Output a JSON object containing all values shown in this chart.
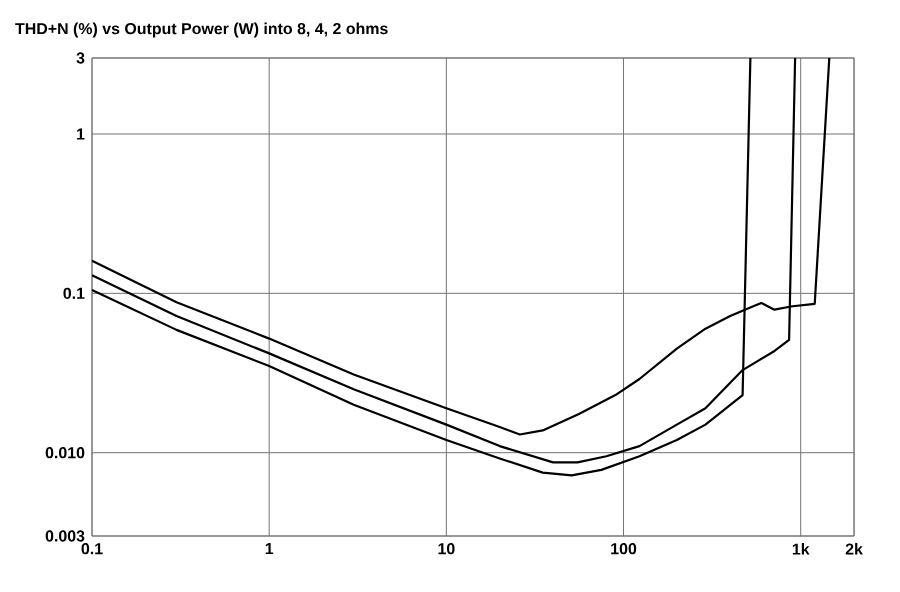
{
  "chart_data": {
    "type": "line",
    "title": "THD+N (%) vs Output Power (W) into 8, 4, 2 ohms",
    "log": "xy",
    "grid": true,
    "xlim": [
      0.1,
      2000
    ],
    "ylim": [
      0.003,
      3
    ],
    "xticks": [
      0.1,
      1,
      10,
      100,
      {
        "value": 1000,
        "label": "1k"
      },
      {
        "value": 2000,
        "label": "2k"
      }
    ],
    "yticks": [
      0.003,
      {
        "value": 0.01,
        "label": "0.010"
      },
      0.1,
      1,
      3
    ],
    "series": [
      {
        "color": "#000000",
        "x": [
          0.1,
          0.3,
          1,
          3,
          10,
          20,
          26,
          35,
          56,
          90,
          123,
          200,
          290,
          400,
          540,
          600,
          710,
          900,
          1200,
          1450
        ],
        "values": [
          0.16,
          0.088,
          0.052,
          0.031,
          0.019,
          0.0145,
          0.013,
          0.0138,
          0.0175,
          0.023,
          0.029,
          0.045,
          0.06,
          0.072,
          0.083,
          0.087,
          0.079,
          0.083,
          0.086,
          3
        ]
      },
      {
        "color": "#000000",
        "x": [
          0.1,
          0.3,
          1,
          3,
          10,
          20,
          40,
          55,
          80,
          123,
          200,
          290,
          470,
          700,
          860,
          930
        ],
        "values": [
          0.13,
          0.072,
          0.042,
          0.025,
          0.015,
          0.011,
          0.0087,
          0.0087,
          0.0095,
          0.011,
          0.015,
          0.019,
          0.033,
          0.043,
          0.051,
          3
        ]
      },
      {
        "color": "#000000",
        "x": [
          0.1,
          0.3,
          1,
          3,
          10,
          20,
          35,
          51,
          75,
          123,
          200,
          290,
          470,
          520
        ],
        "values": [
          0.105,
          0.059,
          0.035,
          0.02,
          0.012,
          0.0092,
          0.0075,
          0.0072,
          0.0078,
          0.0095,
          0.012,
          0.015,
          0.023,
          3
        ]
      }
    ]
  }
}
